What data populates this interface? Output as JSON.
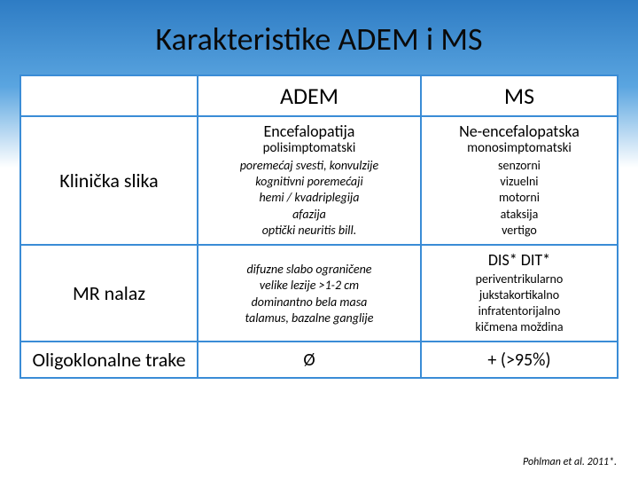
{
  "title": "Karakteristike ADEM i MS",
  "columns": {
    "c1": "ADEM",
    "c2": "MS"
  },
  "rows": {
    "r1": {
      "label": "Klinička slika",
      "adem": {
        "lead": "Encefalopatija",
        "sub": "polisimptomatski",
        "body": "poremećaj svesti, konvulzije\nkognitivni poremećaji\nhemi / kvadriplegija\nafazija\noptički neuritis bill."
      },
      "ms": {
        "lead": "Ne-encefalopatska",
        "sub": "monosimptomatski",
        "body": "senzorni\nvizuelni\nmotorni\nataksija\nvertigo"
      }
    },
    "r2": {
      "label": "MR nalaz",
      "adem": {
        "body": "difuzne slabo ograničene\nvelike lezije >1-2 cm\ndominantno bela masa\ntalamus, bazalne ganglije"
      },
      "ms": {
        "lead": "DIS*  DIT*",
        "body": "periventrikularno\njukstakortikalno\ninfratentorijalno\nkičmena moždina"
      }
    },
    "r3": {
      "label": "Oligoklonalne trake",
      "adem": {
        "sym": "Ø"
      },
      "ms": {
        "sym": "+ (>95%)"
      }
    }
  },
  "citation": "Pohlman et al. 2011*."
}
